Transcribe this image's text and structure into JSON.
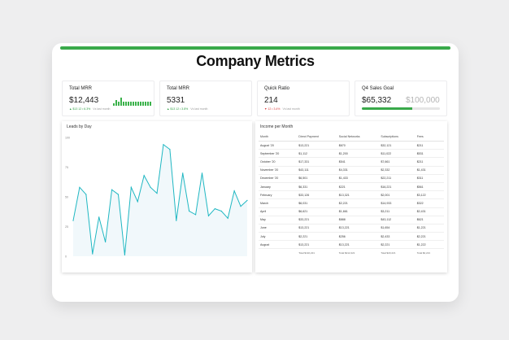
{
  "page": {
    "title": "Company Metrics"
  },
  "colors": {
    "accent": "#39a94a",
    "line": "#1fb7c2",
    "negative": "#d83a3a"
  },
  "kpis": {
    "mrr": {
      "label": "Total MRR",
      "value": "$12,443",
      "delta": "▲ $13 12 • 6.3%",
      "note": "Vs last month"
    },
    "customers": {
      "label": "Total MRR",
      "value": "5331",
      "delta": "▲ $13 12 • 3.8%",
      "note": "Vs last month"
    },
    "quick": {
      "label": "Quick Ratio",
      "value": "214",
      "delta": "▼ 12 • 3.4%",
      "note": "Vs last month"
    },
    "goal": {
      "label": "Q4 Sales Goal",
      "value": "$65,332",
      "target": "$100,000",
      "progress": 0.65
    }
  },
  "mini_bars": [
    0.3,
    0.7,
    0.5,
    1.0,
    0.55,
    0.55,
    0.55,
    0.55,
    0.55,
    0.55,
    0.55,
    0.55,
    0.55,
    0.55,
    0.55,
    0.55
  ],
  "leads": {
    "title": "Leads by Day"
  },
  "chart_data": {
    "type": "area",
    "title": "Leads by Day",
    "xlabel": "",
    "ylabel": "",
    "yticks": [
      "0",
      "25",
      "50",
      "75",
      "100"
    ],
    "ylim": [
      0,
      100
    ],
    "values": [
      30,
      58,
      52,
      2,
      33,
      12,
      56,
      52,
      1,
      58,
      46,
      68,
      58,
      53,
      94,
      90,
      30,
      70,
      38,
      35,
      70,
      34,
      40,
      38,
      32,
      55,
      42,
      47
    ]
  },
  "income": {
    "title": "Income per Month",
    "columns": [
      "Month",
      "Direct Payment",
      "Social Networks",
      "Subscriptions",
      "Fees"
    ],
    "rows": [
      [
        "August '20",
        "$13,221",
        "$670",
        "$32,121",
        "$211"
      ],
      [
        "September '20",
        "$1,112",
        "$1,200",
        "$11,022",
        "$531"
      ],
      [
        "October '20",
        "$17,331",
        "$541",
        "$7,661",
        "$211"
      ],
      [
        "November '20",
        "$43,111",
        "$4,331",
        "$2,332",
        "$1,431"
      ],
      [
        "December '20",
        "$6,501",
        "$1,433",
        "$22,211",
        "$311"
      ],
      [
        "January",
        "$6,331",
        "$221",
        "$16,221",
        "$561"
      ],
      [
        "February",
        "$33,126",
        "$13,321",
        "$2,001",
        "$3,122"
      ],
      [
        "March",
        "$6,031",
        "$2,221",
        "$14,933",
        "$322"
      ],
      [
        "April",
        "$6,621",
        "$1,661",
        "$3,211",
        "$2,431"
      ],
      [
        "May",
        "$33,221",
        "$888",
        "$43,112",
        "$621"
      ],
      [
        "June",
        "$13,221",
        "$13,221",
        "$1,654",
        "$1,221"
      ],
      [
        "July",
        "$2,221",
        "$256",
        "$2,433",
        "$2,221"
      ],
      [
        "August",
        "$13,221",
        "$13,221",
        "$2,221",
        "$1,222"
      ]
    ],
    "totals": [
      "",
      "Total $132,221",
      "Total $212,221",
      "Total $23,221",
      "Total $2,221"
    ]
  }
}
